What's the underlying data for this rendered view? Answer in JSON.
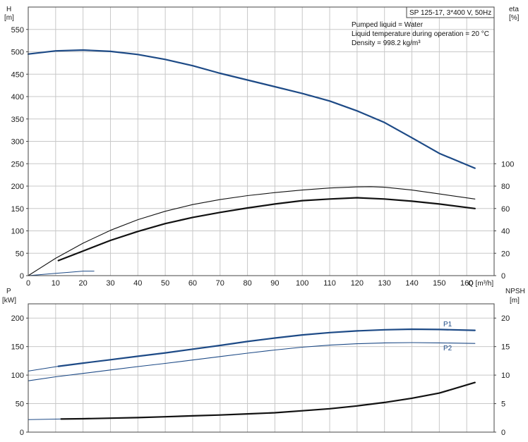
{
  "chart_data": [
    {
      "type": "line",
      "title": "SP 125-17, 3*400 V, 50Hz",
      "annotations": [
        "Pumped liquid = Water",
        "Liquid temperature during operation = 20 °C",
        "Density = 998.2 kg/m³"
      ],
      "xlabel": "Q [m³/h]",
      "xlim": [
        0,
        170
      ],
      "xticks": [
        0,
        10,
        20,
        30,
        40,
        50,
        60,
        70,
        80,
        90,
        100,
        110,
        120,
        130,
        140,
        150,
        160
      ],
      "left_axis": {
        "label_line1": "H",
        "label_line2": "[m]",
        "range": [
          0,
          600
        ],
        "ticks": [
          0,
          50,
          100,
          150,
          200,
          250,
          300,
          350,
          400,
          450,
          500,
          550
        ]
      },
      "right_axis": {
        "label_line1": "eta",
        "label_line2": "[%]",
        "range": [
          0,
          240
        ],
        "ticks": [
          0,
          20,
          40,
          60,
          80,
          100
        ]
      },
      "grid": true,
      "series": [
        {
          "axis": "left",
          "color": "#1d4a86",
          "width": 2.2,
          "points": [
            [
              0,
              495
            ],
            [
              10,
              502
            ],
            [
              20,
              504
            ],
            [
              30,
              501
            ],
            [
              40,
              494
            ],
            [
              50,
              483
            ],
            [
              60,
              469
            ],
            [
              70,
              452
            ],
            [
              80,
              437
            ],
            [
              90,
              422
            ],
            [
              100,
              407
            ],
            [
              110,
              390
            ],
            [
              120,
              368
            ],
            [
              130,
              342
            ],
            [
              140,
              308
            ],
            [
              150,
              273
            ],
            [
              163,
              240
            ]
          ]
        },
        {
          "axis": "right",
          "color": "#1d4a86",
          "width": 1,
          "points": [
            [
              0,
              0
            ],
            [
              5,
              1
            ],
            [
              10,
              2
            ],
            [
              15,
              3
            ],
            [
              20,
              4
            ],
            [
              24,
              4
            ]
          ]
        },
        {
          "axis": "right",
          "color": "#111111",
          "width": 1.1,
          "points": [
            [
              0,
              0
            ],
            [
              10,
              15.5
            ],
            [
              20,
              29
            ],
            [
              30,
              40.5
            ],
            [
              40,
              50
            ],
            [
              50,
              57.5
            ],
            [
              60,
              63.5
            ],
            [
              70,
              68
            ],
            [
              80,
              71.5
            ],
            [
              90,
              74.2
            ],
            [
              100,
              76.5
            ],
            [
              110,
              78.3
            ],
            [
              120,
              79.3
            ],
            [
              125,
              79.5
            ],
            [
              130,
              79
            ],
            [
              140,
              76.5
            ],
            [
              150,
              73
            ],
            [
              163,
              68.5
            ]
          ]
        },
        {
          "axis": "right",
          "color": "#111111",
          "width": 2.2,
          "points": [
            [
              11,
              13.5
            ],
            [
              20,
              22
            ],
            [
              30,
              31.5
            ],
            [
              40,
              39.5
            ],
            [
              50,
              46.5
            ],
            [
              60,
              52
            ],
            [
              70,
              56.5
            ],
            [
              80,
              60.5
            ],
            [
              90,
              64
            ],
            [
              100,
              67
            ],
            [
              110,
              68.5
            ],
            [
              120,
              69.6
            ],
            [
              130,
              68.5
            ],
            [
              140,
              66.5
            ],
            [
              150,
              64
            ],
            [
              163,
              60
            ]
          ]
        }
      ]
    },
    {
      "type": "line",
      "xlim": [
        0,
        170
      ],
      "left_axis": {
        "label_line1": "P",
        "label_line2": "[kW]",
        "range": [
          0,
          225
        ],
        "ticks": [
          0,
          50,
          100,
          150,
          200
        ]
      },
      "right_axis": {
        "label_line1": "NPSH",
        "label_line2": "[m]",
        "range": [
          0,
          22.5
        ],
        "ticks": [
          0,
          5,
          10,
          15,
          20
        ]
      },
      "grid": true,
      "series": [
        {
          "name": "P1",
          "axis": "left",
          "color": "#1d4a86",
          "width": 2.2,
          "points": [
            [
              11,
              115.5
            ],
            [
              20,
              121
            ],
            [
              30,
              127
            ],
            [
              40,
              133
            ],
            [
              50,
              139
            ],
            [
              60,
              145.5
            ],
            [
              70,
              152
            ],
            [
              80,
              159
            ],
            [
              90,
              165
            ],
            [
              100,
              170.5
            ],
            [
              110,
              174.5
            ],
            [
              120,
              177.5
            ],
            [
              130,
              179.5
            ],
            [
              140,
              180.5
            ],
            [
              150,
              180
            ],
            [
              163,
              178.5
            ]
          ]
        },
        {
          "axis": "left",
          "color": "#1d4a86",
          "width": 1,
          "points": [
            [
              0,
              107
            ],
            [
              11,
              115.5
            ]
          ]
        },
        {
          "name": "P2",
          "axis": "left",
          "color": "#1d4a86",
          "width": 1.1,
          "points": [
            [
              0,
              90
            ],
            [
              10,
              97
            ],
            [
              20,
              103
            ],
            [
              30,
              109
            ],
            [
              40,
              115
            ],
            [
              50,
              120.5
            ],
            [
              60,
              126.5
            ],
            [
              70,
              132.5
            ],
            [
              80,
              138.5
            ],
            [
              90,
              144
            ],
            [
              100,
              149
            ],
            [
              110,
              152.5
            ],
            [
              120,
              155
            ],
            [
              130,
              156.5
            ],
            [
              140,
              157
            ],
            [
              150,
              156.5
            ],
            [
              163,
              155.5
            ]
          ]
        },
        {
          "axis": "right",
          "color": "#1d4a86",
          "width": 1,
          "points": [
            [
              0,
              2.2
            ],
            [
              12,
              2.3
            ]
          ]
        },
        {
          "axis": "right",
          "color": "#111111",
          "width": 2.2,
          "points": [
            [
              12,
              2.3
            ],
            [
              20,
              2.35
            ],
            [
              30,
              2.45
            ],
            [
              40,
              2.55
            ],
            [
              50,
              2.7
            ],
            [
              60,
              2.85
            ],
            [
              70,
              3.0
            ],
            [
              80,
              3.2
            ],
            [
              90,
              3.4
            ],
            [
              100,
              3.75
            ],
            [
              110,
              4.1
            ],
            [
              120,
              4.6
            ],
            [
              130,
              5.2
            ],
            [
              140,
              5.95
            ],
            [
              150,
              6.85
            ],
            [
              163,
              8.7
            ]
          ]
        }
      ]
    }
  ]
}
